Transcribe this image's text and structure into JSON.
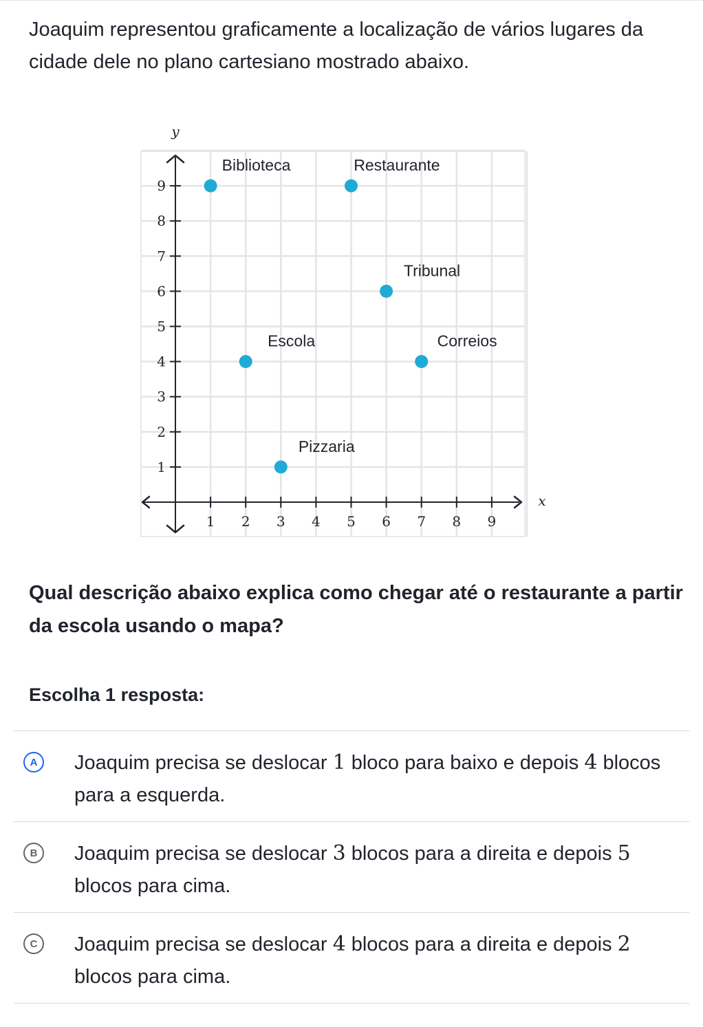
{
  "intro": "Joaquim representou graficamente a localização de vários lugares da cidade dele no plano cartesiano mostrado abaixo.",
  "chart_data": {
    "type": "scatter",
    "xlabel": "x",
    "ylabel": "y",
    "xlim": [
      -1,
      10
    ],
    "ylim": [
      -1,
      10
    ],
    "x_ticks": [
      1,
      2,
      3,
      4,
      5,
      6,
      7,
      8,
      9
    ],
    "y_ticks": [
      1,
      2,
      3,
      4,
      5,
      6,
      7,
      8,
      9
    ],
    "grid": true,
    "point_color": "#1fabd5",
    "points": [
      {
        "label": "Biblioteca",
        "x": 1,
        "y": 9
      },
      {
        "label": "Restaurante",
        "x": 5,
        "y": 9
      },
      {
        "label": "Tribunal",
        "x": 6,
        "y": 6
      },
      {
        "label": "Escola",
        "x": 2,
        "y": 4
      },
      {
        "label": "Correios",
        "x": 7,
        "y": 4
      },
      {
        "label": "Pizzaria",
        "x": 3,
        "y": 1
      }
    ]
  },
  "question": "Qual descrição abaixo explica como chegar até o restaurante a partir da escola usando o mapa?",
  "prompt": "Escolha 1 resposta:",
  "choices": [
    {
      "letter": "A",
      "pre": "Joaquim precisa se deslocar ",
      "n1": "1",
      "mid": " bloco para baixo e depois ",
      "n2": "4",
      "post": " blocos para a esquerda."
    },
    {
      "letter": "B",
      "pre": "Joaquim precisa se deslocar ",
      "n1": "3",
      "mid": " blocos para a direita e depois ",
      "n2": "5",
      "post": " blocos para cima."
    },
    {
      "letter": "C",
      "pre": "Joaquim precisa se deslocar ",
      "n1": "4",
      "mid": " blocos para a direita e depois ",
      "n2": "2",
      "post": " blocos para cima."
    }
  ],
  "colors": {
    "accent": "#1865f2",
    "text": "#21242c",
    "point": "#1fabd5"
  }
}
